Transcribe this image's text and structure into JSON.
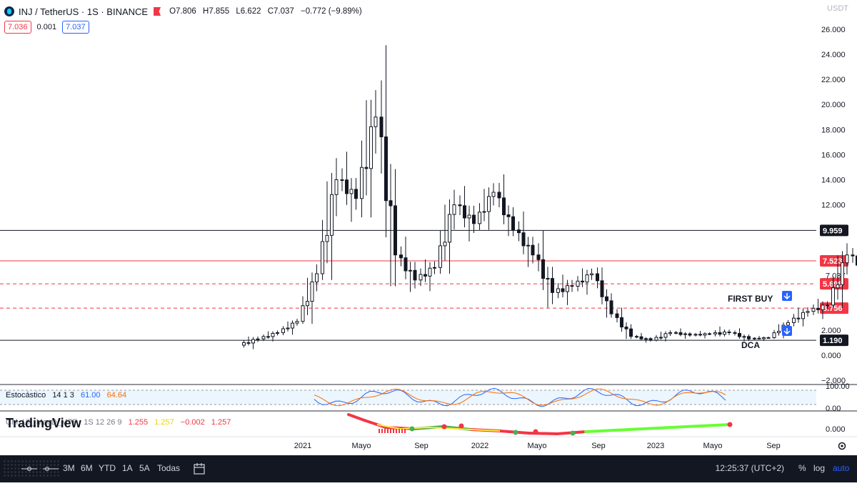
{
  "header": {
    "symbol": "INJ / TetherUS · 1S · BINANCE",
    "open": "O7.806",
    "high": "H7.855",
    "low": "L6.622",
    "close": "C7.037",
    "change": "−0.772 (−9.89%)",
    "bid": "7.036",
    "spread": "0.001",
    "ask": "7.037",
    "currency": "USDT"
  },
  "axis": {
    "right_ticks": [
      "26.000",
      "24.000",
      "22.000",
      "20.000",
      "18.000",
      "16.000",
      "14.000",
      "12.000",
      "2.000",
      "0.000",
      "−2.000"
    ],
    "x_labels": [
      "2021",
      "Mayo",
      "Sep",
      "2022",
      "Mayo",
      "Sep",
      "2023",
      "Mayo",
      "Sep"
    ]
  },
  "levels": [
    {
      "value": 9.959,
      "label": "9.959",
      "style": "solid",
      "color": "#131722"
    },
    {
      "value": 7.523,
      "label": "7.523",
      "style": "solid",
      "color": "#f23645"
    },
    {
      "value": 5.698,
      "label": "5.698",
      "style": "dashed",
      "color": "#f23645"
    },
    {
      "value": 3.756,
      "label": "3.756",
      "style": "dashed",
      "color": "#f23645"
    },
    {
      "value": 1.19,
      "label": "1.190",
      "style": "solid",
      "color": "#131722"
    }
  ],
  "current_price": "7.037",
  "annotations": {
    "first_buy": "FIRST BUY",
    "dca": "DCA"
  },
  "stoch": {
    "name": "Estocástico",
    "params": "14 1 3",
    "k": "61.00",
    "d": "64.64",
    "ticks": [
      "100.00",
      "0.00"
    ]
  },
  "macd": {
    "name": "CM_Ult_MacD_MTF",
    "params": "1S 12 26 9",
    "v1": "1.255",
    "v2": "1.257",
    "v3": "−0.002",
    "v4": "1.257",
    "ticks": [
      "0.000"
    ]
  },
  "watermark": "TradingView",
  "bottom": {
    "ranges": [
      "3M",
      "6M",
      "YTD",
      "1A",
      "5A",
      "Todas"
    ],
    "time": "12:25:37 (UTC+2)",
    "percent": "%",
    "log": "log",
    "auto": "auto"
  },
  "colors": {
    "up": "#131722",
    "down": "#131722",
    "red": "#f23645",
    "blue": "#2962ff",
    "orange": "#ff6d00"
  },
  "chart_data": {
    "type": "candlestick",
    "title": "INJ / TetherUS · 1S · BINANCE",
    "x_start": "2020-10",
    "ylim": [
      -2,
      26
    ],
    "series": [
      {
        "date": "2020-10",
        "o": 0.8,
        "h": 1.6,
        "l": 0.3,
        "c": 1.3
      },
      {
        "date": "2020-11",
        "o": 1.3,
        "h": 2.2,
        "l": 1.1,
        "c": 1.8
      },
      {
        "date": "2020-12",
        "o": 1.8,
        "h": 3.0,
        "l": 1.6,
        "c": 2.7
      },
      {
        "date": "2021-01",
        "o": 2.7,
        "h": 7.5,
        "l": 2.5,
        "c": 6.5
      },
      {
        "date": "2021-02",
        "o": 6.5,
        "h": 17.5,
        "l": 6.0,
        "c": 14.0
      },
      {
        "date": "2021-03",
        "o": 14.0,
        "h": 16.5,
        "l": 10.5,
        "c": 12.5
      },
      {
        "date": "2021-04",
        "o": 12.5,
        "h": 25.3,
        "l": 11.0,
        "c": 19.0
      },
      {
        "date": "2021-05",
        "o": 19.0,
        "h": 25.0,
        "l": 5.5,
        "c": 8.0
      },
      {
        "date": "2021-06",
        "o": 8.0,
        "h": 9.5,
        "l": 5.0,
        "c": 6.0
      },
      {
        "date": "2021-07",
        "o": 6.0,
        "h": 8.0,
        "l": 4.8,
        "c": 7.0
      },
      {
        "date": "2021-08",
        "o": 7.0,
        "h": 14.5,
        "l": 6.5,
        "c": 12.0
      },
      {
        "date": "2021-09",
        "o": 12.0,
        "h": 13.5,
        "l": 8.5,
        "c": 10.5
      },
      {
        "date": "2021-10",
        "o": 10.5,
        "h": 14.8,
        "l": 10.0,
        "c": 13.0
      },
      {
        "date": "2021-11",
        "o": 13.0,
        "h": 14.5,
        "l": 9.5,
        "c": 10.0
      },
      {
        "date": "2021-12",
        "o": 10.0,
        "h": 11.5,
        "l": 7.0,
        "c": 8.0
      },
      {
        "date": "2022-01",
        "o": 8.0,
        "h": 10.0,
        "l": 3.8,
        "c": 5.0
      },
      {
        "date": "2022-02",
        "o": 5.0,
        "h": 7.0,
        "l": 4.0,
        "c": 5.5
      },
      {
        "date": "2022-03",
        "o": 5.5,
        "h": 7.5,
        "l": 4.8,
        "c": 6.5
      },
      {
        "date": "2022-04",
        "o": 6.5,
        "h": 7.0,
        "l": 3.0,
        "c": 3.3
      },
      {
        "date": "2022-05",
        "o": 3.3,
        "h": 3.8,
        "l": 1.3,
        "c": 1.5
      },
      {
        "date": "2022-06",
        "o": 1.5,
        "h": 1.8,
        "l": 1.0,
        "c": 1.2
      },
      {
        "date": "2022-07",
        "o": 1.2,
        "h": 2.3,
        "l": 1.1,
        "c": 1.8
      },
      {
        "date": "2022-08",
        "o": 1.8,
        "h": 2.2,
        "l": 1.3,
        "c": 1.6
      },
      {
        "date": "2022-09",
        "o": 1.6,
        "h": 2.0,
        "l": 1.3,
        "c": 1.7
      },
      {
        "date": "2022-10",
        "o": 1.7,
        "h": 2.8,
        "l": 1.5,
        "c": 1.8
      },
      {
        "date": "2022-11",
        "o": 1.8,
        "h": 2.2,
        "l": 1.1,
        "c": 1.3
      },
      {
        "date": "2022-12",
        "o": 1.3,
        "h": 1.6,
        "l": 1.1,
        "c": 1.4
      },
      {
        "date": "2023-01",
        "o": 1.4,
        "h": 2.8,
        "l": 1.3,
        "c": 2.6
      },
      {
        "date": "2023-02",
        "o": 2.6,
        "h": 4.5,
        "l": 2.3,
        "c": 3.5
      },
      {
        "date": "2023-03",
        "o": 3.5,
        "h": 4.5,
        "l": 2.5,
        "c": 4.0
      },
      {
        "date": "2023-04",
        "o": 4.0,
        "h": 10.0,
        "l": 3.8,
        "c": 8.0
      },
      {
        "date": "2023-05",
        "o": 8.0,
        "h": 9.5,
        "l": 5.8,
        "c": 6.8
      },
      {
        "date": "2023-06",
        "o": 7.8,
        "h": 7.9,
        "l": 6.6,
        "c": 7.0
      }
    ]
  }
}
